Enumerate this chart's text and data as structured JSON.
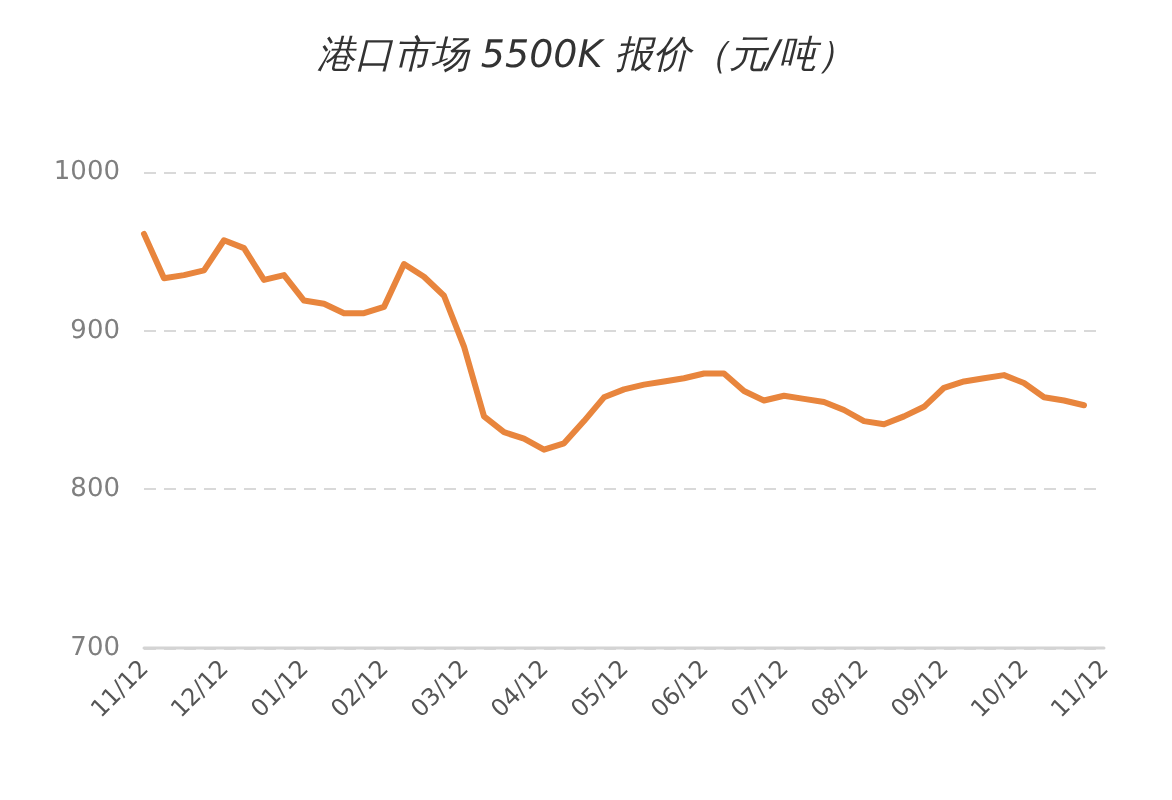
{
  "chart_data": {
    "type": "line",
    "title": "港口市场 5500K 报价（元/吨）",
    "categories": [
      "11/12",
      null,
      null,
      null,
      "12/12",
      null,
      null,
      null,
      "01/12",
      null,
      null,
      null,
      "02/12",
      null,
      null,
      null,
      "03/12",
      null,
      null,
      null,
      "04/12",
      null,
      null,
      null,
      "05/12",
      null,
      null,
      null,
      "06/12",
      null,
      null,
      null,
      "07/12",
      null,
      null,
      null,
      "08/12",
      null,
      null,
      null,
      "09/12",
      null,
      null,
      null,
      "10/12",
      null,
      null,
      null,
      "11/12"
    ],
    "values": [
      961,
      933,
      935,
      938,
      957,
      952,
      932,
      935,
      919,
      917,
      911,
      911,
      915,
      942,
      934,
      922,
      890,
      846,
      836,
      832,
      825,
      829,
      843,
      858,
      863,
      866,
      868,
      870,
      873,
      873,
      862,
      856,
      859,
      857,
      855,
      850,
      843,
      841,
      846,
      852,
      864,
      868,
      870,
      872,
      867,
      858,
      856,
      853,
      null
    ],
    "color": "#e8853d",
    "ylim": [
      700,
      1000
    ],
    "yticks": [
      700,
      800,
      900,
      1000
    ],
    "grid": "y",
    "marker": "none",
    "line_style": "solid"
  }
}
